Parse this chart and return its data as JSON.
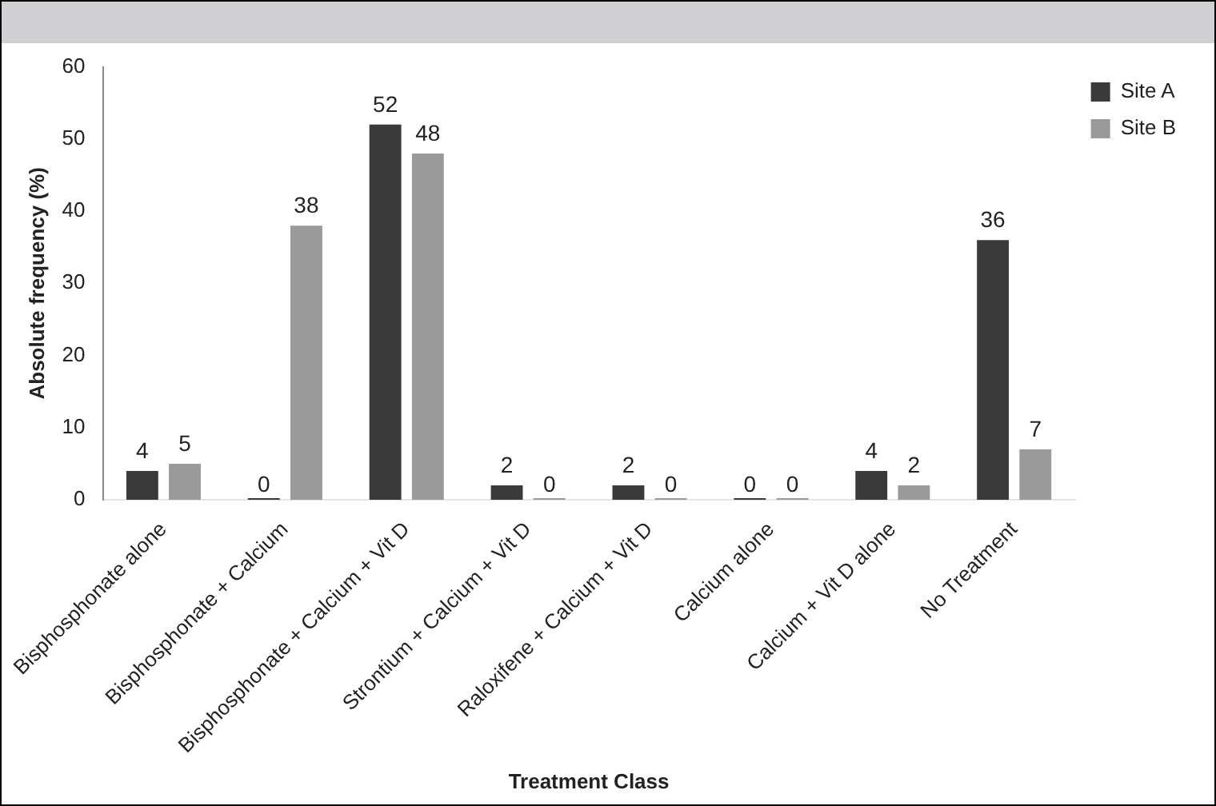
{
  "chart_data": {
    "type": "bar",
    "xlabel": "Treatment Class",
    "ylabel": "Absolute frequency (%)",
    "categories": [
      "Bisphosphonate alone",
      "Bisphosphonate + Calcium",
      "Bisphosphonate + Calcium + Vit D",
      "Strontium + Calcium + Vit D",
      "Raloxifene + Calcium + Vit D",
      "Calcium alone",
      "Calcium + Vit D alone",
      "No Treatment"
    ],
    "series": [
      {
        "name": "Site A",
        "color": "#3a3a3a",
        "values": [
          4,
          0,
          52,
          2,
          2,
          0,
          4,
          36
        ]
      },
      {
        "name": "Site B",
        "color": "#9a9a9a",
        "values": [
          5,
          38,
          48,
          0,
          0,
          0,
          2,
          7
        ]
      }
    ],
    "ylim": [
      0,
      60
    ],
    "yticks": [
      0,
      10,
      20,
      30,
      40,
      50,
      60
    ],
    "grid": false,
    "legend": "top right",
    "data_labels": true
  }
}
